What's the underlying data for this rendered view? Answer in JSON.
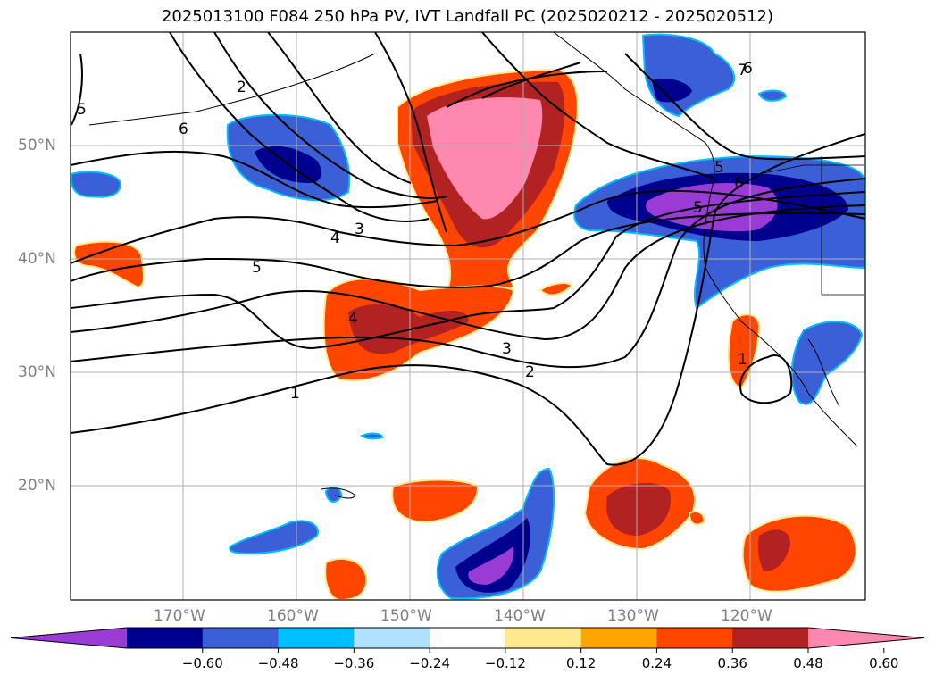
{
  "title": "2025013100 F084 250 hPa PV, IVT Landfall PC (2025020212 - 2025020512)",
  "lat_labels": [
    "50°N",
    "40°N",
    "30°N",
    "20°N"
  ],
  "lon_labels": [
    "170°W",
    "160°W",
    "150°W",
    "140°W",
    "130°W",
    "120°W"
  ],
  "colorbar": {
    "ticks": [
      "−0.60",
      "−0.48",
      "−0.36",
      "−0.24",
      "−0.12",
      "0.12",
      "0.24",
      "0.36",
      "0.48",
      "0.60"
    ],
    "colors": [
      "#9a3bd6",
      "#00008f",
      "#3a5fd6",
      "#00bfff",
      "#b0e2ff",
      "#ffffff",
      "#ffe98f",
      "#ffa500",
      "#ff4500",
      "#b22222",
      "#ff88b0"
    ]
  },
  "contour_labels": [
    "1",
    "2",
    "3",
    "4",
    "5",
    "6",
    "3",
    "4",
    "5",
    "6",
    "1",
    "5",
    "6",
    "2",
    "5",
    "7"
  ],
  "colors": {
    "grid": "#b0b0b0",
    "contour": "#000000",
    "coast": "#000000"
  }
}
